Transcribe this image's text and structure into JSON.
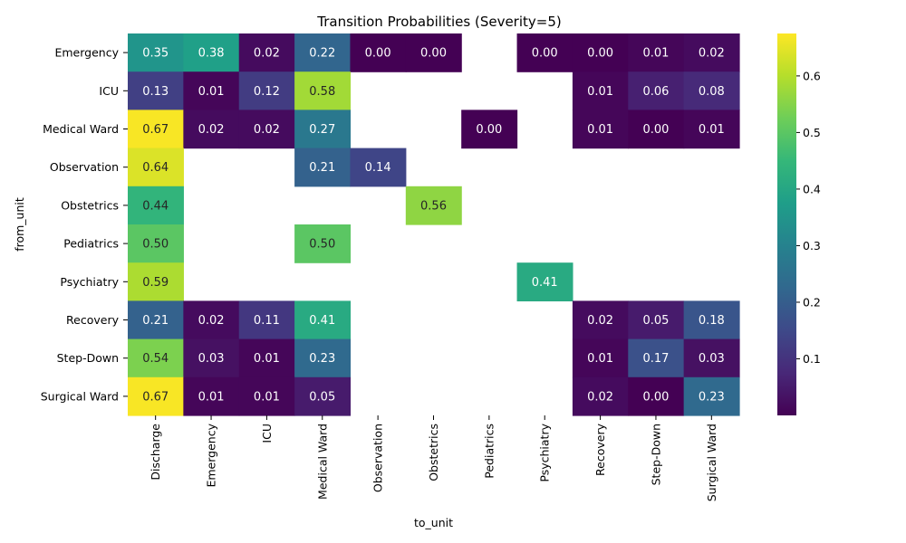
{
  "chart_data": {
    "type": "heatmap",
    "title": "Transition Probabilities (Severity=5)",
    "xlabel": "to_unit",
    "ylabel": "from_unit",
    "x_categories": [
      "Discharge",
      "Emergency",
      "ICU",
      "Medical Ward",
      "Observation",
      "Obstetrics",
      "Pediatrics",
      "Psychiatry",
      "Recovery",
      "Step-Down",
      "Surgical Ward"
    ],
    "y_categories": [
      "Emergency",
      "ICU",
      "Medical Ward",
      "Observation",
      "Obstetrics",
      "Pediatrics",
      "Psychiatry",
      "Recovery",
      "Step-Down",
      "Surgical Ward"
    ],
    "values": [
      [
        0.35,
        0.38,
        0.02,
        0.22,
        0.0,
        0.0,
        null,
        0.0,
        0.0,
        0.01,
        0.02
      ],
      [
        0.13,
        0.01,
        0.12,
        0.58,
        null,
        null,
        null,
        null,
        0.01,
        0.06,
        0.08
      ],
      [
        0.67,
        0.02,
        0.02,
        0.27,
        null,
        null,
        0.0,
        null,
        0.01,
        0.0,
        0.01
      ],
      [
        0.64,
        null,
        null,
        0.21,
        0.14,
        null,
        null,
        null,
        null,
        null,
        null
      ],
      [
        0.44,
        null,
        null,
        null,
        null,
        0.56,
        null,
        null,
        null,
        null,
        null
      ],
      [
        0.5,
        null,
        null,
        0.5,
        null,
        null,
        null,
        null,
        null,
        null,
        null
      ],
      [
        0.59,
        null,
        null,
        null,
        null,
        null,
        null,
        0.41,
        null,
        null,
        null
      ],
      [
        0.21,
        0.02,
        0.11,
        0.41,
        null,
        null,
        null,
        null,
        0.02,
        0.05,
        0.18
      ],
      [
        0.54,
        0.03,
        0.01,
        0.23,
        null,
        null,
        null,
        null,
        0.01,
        0.17,
        0.03
      ],
      [
        0.67,
        0.01,
        0.01,
        0.05,
        null,
        null,
        null,
        null,
        0.02,
        0.0,
        0.23
      ]
    ],
    "colormap": "viridis",
    "color_range": [
      0.0,
      0.675
    ],
    "colorbar_ticks": [
      "0.1",
      "0.2",
      "0.3",
      "0.4",
      "0.5",
      "0.6"
    ],
    "colorbar_tick_values": [
      0.1,
      0.2,
      0.3,
      0.4,
      0.5,
      0.6
    ],
    "grid": false,
    "colors": {
      "viridis_stops": [
        "#440154",
        "#482878",
        "#3e4989",
        "#31688e",
        "#26828e",
        "#1f9e89",
        "#35b779",
        "#6ece58",
        "#b5de2b",
        "#fde725"
      ]
    }
  }
}
